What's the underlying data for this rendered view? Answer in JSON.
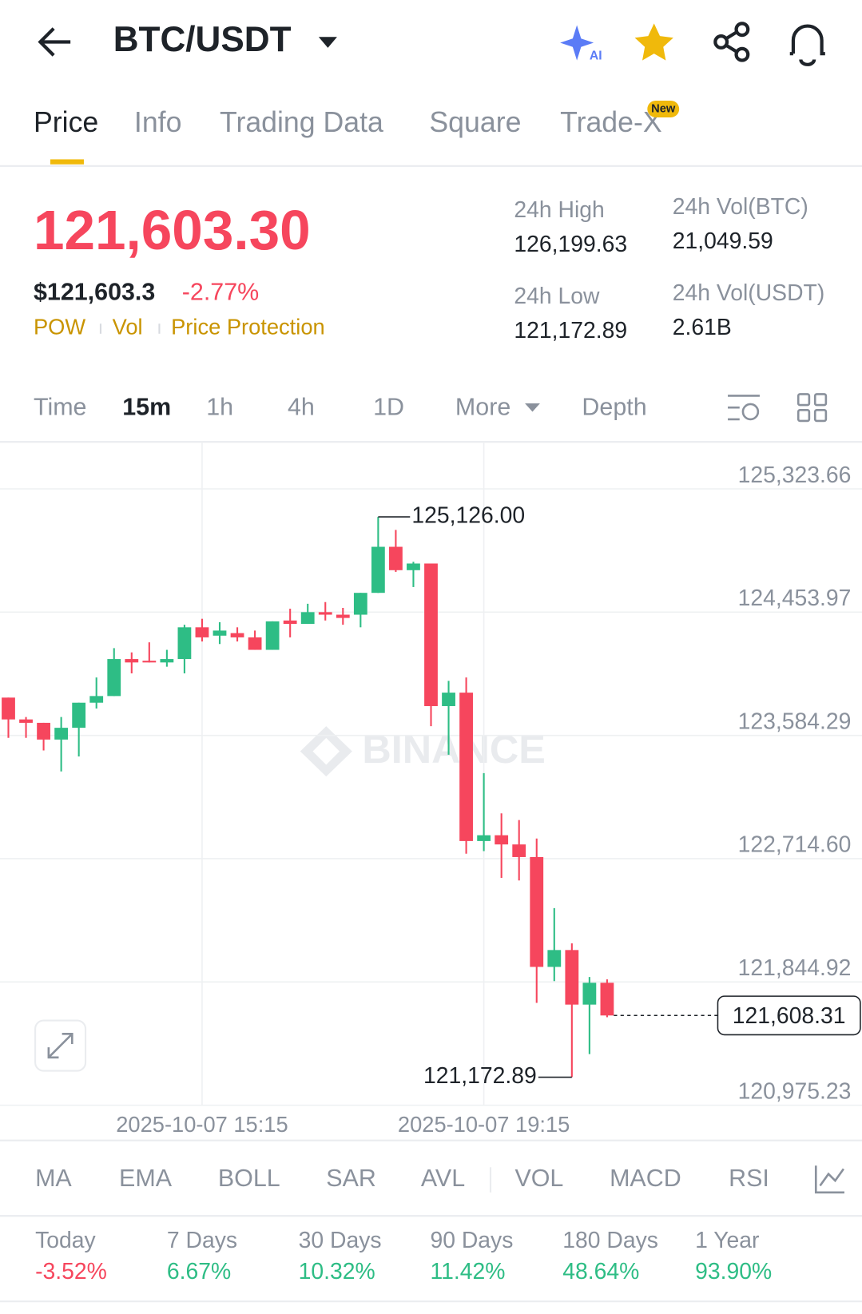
{
  "header": {
    "pair": "BTC/USDT"
  },
  "tabs": {
    "items": [
      "Price",
      "Info",
      "Trading Data",
      "Square",
      "Trade-X"
    ],
    "badge": "New"
  },
  "price": {
    "last": "121,603.30",
    "usd": "$121,603.3",
    "change": "-2.77%",
    "tags": [
      "POW",
      "Vol",
      "Price Protection"
    ]
  },
  "stats": [
    {
      "label": "24h High",
      "value": "126,199.63"
    },
    {
      "label": "24h Vol(BTC)",
      "value": "21,049.59"
    },
    {
      "label": "24h Low",
      "value": "121,172.89"
    },
    {
      "label": "24h Vol(USDT)",
      "value": "2.61B"
    }
  ],
  "intervals": [
    "Time",
    "15m",
    "1h",
    "4h",
    "1D",
    "More",
    "Depth"
  ],
  "chart_data": {
    "type": "candlestick",
    "watermark": "BINANCE",
    "up_color": "#2ebd85",
    "down_color": "#f6465d",
    "ylim": [
      120975.23,
      125654.97
    ],
    "yticks": [
      {
        "value": 125323.66,
        "label": "125,323.66"
      },
      {
        "value": 124453.97,
        "label": "124,453.97"
      },
      {
        "value": 123584.29,
        "label": "123,584.29"
      },
      {
        "value": 122714.6,
        "label": "122,714.60"
      },
      {
        "value": 121844.92,
        "label": "121,844.92"
      },
      {
        "value": 120975.23,
        "label": "120,975.23"
      }
    ],
    "categories": [
      null,
      null,
      null,
      null,
      null,
      null,
      null,
      null,
      null,
      null,
      null,
      "2025-10-07 15:15",
      null,
      null,
      null,
      null,
      null,
      null,
      null,
      null,
      null,
      null,
      null,
      null,
      null,
      null,
      null,
      "2025-10-07 19:15",
      null,
      null,
      null,
      null,
      null,
      null,
      null
    ],
    "candles": [
      {
        "open": 123851,
        "high": 123851,
        "low": 123567,
        "close": 123697
      },
      {
        "open": 123697,
        "high": 123714,
        "low": 123567,
        "close": 123673
      },
      {
        "open": 123673,
        "high": 123673,
        "low": 123478,
        "close": 123555
      },
      {
        "open": 123555,
        "high": 123714,
        "low": 123330,
        "close": 123638
      },
      {
        "open": 123638,
        "high": 123815,
        "low": 123436,
        "close": 123815
      },
      {
        "open": 123815,
        "high": 123993,
        "low": 123774,
        "close": 123862
      },
      {
        "open": 123862,
        "high": 124200,
        "low": 123862,
        "close": 124123
      },
      {
        "open": 124123,
        "high": 124170,
        "low": 124022,
        "close": 124099
      },
      {
        "open": 124111,
        "high": 124241,
        "low": 124099,
        "close": 124099
      },
      {
        "open": 124099,
        "high": 124188,
        "low": 124069,
        "close": 124123
      },
      {
        "open": 124123,
        "high": 124365,
        "low": 124022,
        "close": 124347
      },
      {
        "open": 124347,
        "high": 124407,
        "low": 124247,
        "close": 124276
      },
      {
        "open": 124288,
        "high": 124383,
        "low": 124229,
        "close": 124324
      },
      {
        "open": 124306,
        "high": 124347,
        "low": 124247,
        "close": 124276
      },
      {
        "open": 124276,
        "high": 124324,
        "low": 124188,
        "close": 124188
      },
      {
        "open": 124188,
        "high": 124389,
        "low": 124188,
        "close": 124389
      },
      {
        "open": 124395,
        "high": 124478,
        "low": 124276,
        "close": 124371
      },
      {
        "open": 124371,
        "high": 124513,
        "low": 124371,
        "close": 124454
      },
      {
        "open": 124454,
        "high": 124525,
        "low": 124395,
        "close": 124436
      },
      {
        "open": 124436,
        "high": 124484,
        "low": 124365,
        "close": 124413
      },
      {
        "open": 124436,
        "high": 124590,
        "low": 124347,
        "close": 124590
      },
      {
        "open": 124590,
        "high": 125126,
        "low": 124590,
        "close": 124915
      },
      {
        "open": 124915,
        "high": 125034,
        "low": 124738,
        "close": 124750
      },
      {
        "open": 124750,
        "high": 124809,
        "low": 124631,
        "close": 124797
      },
      {
        "open": 124797,
        "high": 124797,
        "low": 123649,
        "close": 123791
      },
      {
        "open": 123791,
        "high": 123969,
        "low": 123448,
        "close": 123886
      },
      {
        "open": 123886,
        "high": 123993,
        "low": 122750,
        "close": 122839
      },
      {
        "open": 122839,
        "high": 123318,
        "low": 122768,
        "close": 122880
      },
      {
        "open": 122880,
        "high": 123034,
        "low": 122579,
        "close": 122815
      },
      {
        "open": 122815,
        "high": 122987,
        "low": 122561,
        "close": 122726
      },
      {
        "open": 122726,
        "high": 122857,
        "low": 121697,
        "close": 121951
      },
      {
        "open": 121951,
        "high": 122366,
        "low": 121851,
        "close": 122070
      },
      {
        "open": 122070,
        "high": 122117,
        "low": 121172.89,
        "close": 121685
      },
      {
        "open": 121685,
        "high": 121880,
        "low": 121336,
        "close": 121839
      },
      {
        "open": 121839,
        "high": 121863,
        "low": 121596,
        "close": 121608.31
      }
    ],
    "high_label": "125,126.00",
    "low_label": "121,172.89",
    "last_label": "121,608.31"
  },
  "indicators": [
    "MA",
    "EMA",
    "BOLL",
    "SAR",
    "AVL",
    "VOL",
    "MACD",
    "RSI"
  ],
  "performance": [
    {
      "label": "Today",
      "value": "-3.52%"
    },
    {
      "label": "7 Days",
      "value": "6.67%"
    },
    {
      "label": "30 Days",
      "value": "10.32%"
    },
    {
      "label": "90 Days",
      "value": "11.42%"
    },
    {
      "label": "180 Days",
      "value": "48.64%"
    },
    {
      "label": "1 Year",
      "value": "93.90%"
    }
  ]
}
